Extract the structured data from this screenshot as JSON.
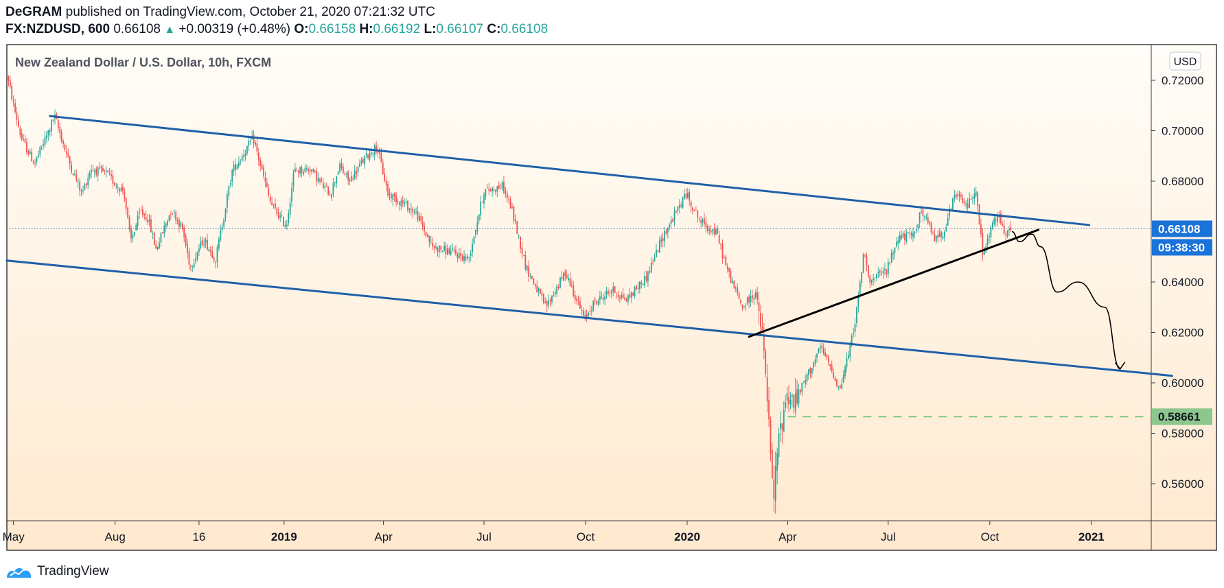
{
  "header": {
    "author": "DeGRAM",
    "published": "published on TradingView.com, October 21, 2020 07:21:32 UTC",
    "symbol": "FX:NZDUSD, 600",
    "last": "0.66108",
    "change": "+0.00319 (+0.48%)",
    "o_label": "O:",
    "o_value": "0.66158",
    "h_label": "H:",
    "h_value": "0.66192",
    "l_label": "L:",
    "l_value": "0.66107",
    "c_label": "C:",
    "c_value": "0.66108"
  },
  "footer": {
    "brand": "TradingView"
  },
  "chart_data": {
    "type": "candlestick",
    "title": "New Zealand Dollar / U.S. Dollar, 10h, FXCM",
    "currency_button": "USD",
    "price_tag": "0.66108",
    "countdown": "09:38:30",
    "support_tag": "0.58661",
    "y_ticks": [
      "0.72000",
      "0.70000",
      "0.68000",
      "0.64000",
      "0.62000",
      "0.60000",
      "0.58000",
      "0.56000"
    ],
    "y_range": [
      0.5465,
      0.7245
    ],
    "x_ticks": [
      {
        "label": "May",
        "date": "2018-05-01",
        "bold": false
      },
      {
        "label": "Aug",
        "date": "2018-08-01",
        "bold": false
      },
      {
        "label": "16",
        "date": "2018-10-16",
        "bold": false
      },
      {
        "label": "2019",
        "date": "2019-01-01",
        "bold": true
      },
      {
        "label": "Apr",
        "date": "2019-04-01",
        "bold": false
      },
      {
        "label": "Jul",
        "date": "2019-07-01",
        "bold": false
      },
      {
        "label": "Oct",
        "date": "2019-10-01",
        "bold": false
      },
      {
        "label": "2020",
        "date": "2020-01-01",
        "bold": true
      },
      {
        "label": "Apr",
        "date": "2020-04-01",
        "bold": false
      },
      {
        "label": "Jul",
        "date": "2020-07-01",
        "bold": false
      },
      {
        "label": "Oct",
        "date": "2020-10-01",
        "bold": false
      },
      {
        "label": "2021",
        "date": "2021-01-01",
        "bold": true
      }
    ],
    "price_path": [
      [
        "2018-04-25",
        0.722
      ],
      [
        "2018-05-08",
        0.697
      ],
      [
        "2018-05-20",
        0.687
      ],
      [
        "2018-06-03",
        0.701
      ],
      [
        "2018-06-07",
        0.706
      ],
      [
        "2018-06-20",
        0.688
      ],
      [
        "2018-07-02",
        0.675
      ],
      [
        "2018-07-10",
        0.685
      ],
      [
        "2018-07-24",
        0.683
      ],
      [
        "2018-08-01",
        0.679
      ],
      [
        "2018-08-09",
        0.676
      ],
      [
        "2018-08-15",
        0.656
      ],
      [
        "2018-08-24",
        0.668
      ],
      [
        "2018-08-31",
        0.665
      ],
      [
        "2018-09-07",
        0.653
      ],
      [
        "2018-09-21",
        0.669
      ],
      [
        "2018-10-01",
        0.661
      ],
      [
        "2018-10-08",
        0.646
      ],
      [
        "2018-10-20",
        0.657
      ],
      [
        "2018-10-31",
        0.649
      ],
      [
        "2018-11-15",
        0.684
      ],
      [
        "2018-12-04",
        0.697
      ],
      [
        "2018-12-20",
        0.671
      ],
      [
        "2019-01-03",
        0.662
      ],
      [
        "2019-01-10",
        0.684
      ],
      [
        "2019-01-25",
        0.685
      ],
      [
        "2019-02-05",
        0.678
      ],
      [
        "2019-02-12",
        0.675
      ],
      [
        "2019-02-20",
        0.686
      ],
      [
        "2019-03-01",
        0.68
      ],
      [
        "2019-03-15",
        0.689
      ],
      [
        "2019-03-26",
        0.694
      ],
      [
        "2019-04-05",
        0.675
      ],
      [
        "2019-04-20",
        0.671
      ],
      [
        "2019-05-01",
        0.667
      ],
      [
        "2019-05-15",
        0.654
      ],
      [
        "2019-06-01",
        0.652
      ],
      [
        "2019-06-17",
        0.649
      ],
      [
        "2019-07-01",
        0.676
      ],
      [
        "2019-07-18",
        0.678
      ],
      [
        "2019-07-26",
        0.669
      ],
      [
        "2019-08-08",
        0.646
      ],
      [
        "2019-08-26",
        0.63
      ],
      [
        "2019-09-13",
        0.644
      ],
      [
        "2019-09-30",
        0.625
      ],
      [
        "2019-10-07",
        0.631
      ],
      [
        "2019-10-25",
        0.637
      ],
      [
        "2019-11-07",
        0.633
      ],
      [
        "2019-11-25",
        0.642
      ],
      [
        "2019-12-10",
        0.658
      ],
      [
        "2019-12-31",
        0.675
      ],
      [
        "2020-01-13",
        0.664
      ],
      [
        "2020-01-28",
        0.659
      ],
      [
        "2020-02-06",
        0.645
      ],
      [
        "2020-02-20",
        0.63
      ],
      [
        "2020-03-03",
        0.636
      ],
      [
        "2020-03-09",
        0.618
      ],
      [
        "2020-03-13",
        0.598
      ],
      [
        "2020-03-19",
        0.552
      ],
      [
        "2020-03-23",
        0.575
      ],
      [
        "2020-03-31",
        0.596
      ],
      [
        "2020-04-07",
        0.592
      ],
      [
        "2020-04-20",
        0.604
      ],
      [
        "2020-05-01",
        0.614
      ],
      [
        "2020-05-12",
        0.604
      ],
      [
        "2020-05-18",
        0.597
      ],
      [
        "2020-05-28",
        0.615
      ],
      [
        "2020-06-03",
        0.63
      ],
      [
        "2020-06-09",
        0.652
      ],
      [
        "2020-06-15",
        0.64
      ],
      [
        "2020-06-30",
        0.645
      ],
      [
        "2020-07-10",
        0.658
      ],
      [
        "2020-07-23",
        0.658
      ],
      [
        "2020-07-31",
        0.668
      ],
      [
        "2020-08-13",
        0.657
      ],
      [
        "2020-08-20",
        0.66
      ],
      [
        "2020-08-31",
        0.675
      ],
      [
        "2020-09-10",
        0.67
      ],
      [
        "2020-09-18",
        0.677
      ],
      [
        "2020-09-25",
        0.65
      ],
      [
        "2020-10-02",
        0.661
      ],
      [
        "2020-10-09",
        0.667
      ],
      [
        "2020-10-14",
        0.658
      ],
      [
        "2020-10-21",
        0.661
      ]
    ],
    "annotations": [
      {
        "name": "channel-upper-line",
        "kind": "trendline",
        "from": [
          "2018-06-03",
          0.7058
        ],
        "to": [
          "2020-12-30",
          0.6626
        ],
        "color": "#1f5fa8"
      },
      {
        "name": "channel-lower-line",
        "kind": "trendline",
        "from": [
          "2018-04-25",
          0.6485
        ],
        "to": [
          "2021-03-15",
          0.6028
        ],
        "color": "#1f5fa8"
      },
      {
        "name": "rising-support-line",
        "kind": "trendline",
        "from": [
          "2020-02-26",
          0.6183
        ],
        "to": [
          "2020-11-14",
          0.6607
        ],
        "color": "#000000"
      },
      {
        "name": "support-level-line",
        "kind": "horizontal",
        "from": [
          "2020-04-01",
          0.5866
        ],
        "to": [
          "2021-03-15",
          0.5866
        ],
        "color": "#7ec87e"
      },
      {
        "name": "current-price-line",
        "kind": "horizontal",
        "from": [
          "2018-04-25",
          0.6611
        ],
        "to": [
          "2021-03-15",
          0.6611
        ],
        "color": "#3a78b8"
      },
      {
        "name": "projected-path-arrow",
        "kind": "path",
        "points": [
          [
            "2020-10-21",
            0.66
          ],
          [
            "2020-10-28",
            0.656
          ],
          [
            "2020-11-08",
            0.659
          ],
          [
            "2020-11-16",
            0.654
          ],
          [
            "2020-12-01",
            0.636
          ],
          [
            "2020-12-20",
            0.64
          ],
          [
            "2021-01-13",
            0.63
          ],
          [
            "2021-01-27",
            0.6055
          ]
        ],
        "color": "#000000"
      }
    ],
    "colors": {
      "up": "#26a69a",
      "down": "#ef5350",
      "bg_top": "#fffdf8",
      "bg_bottom": "#ffe9cf",
      "tag_blue": "#1a73d9",
      "tag_green": "#8ec78e"
    }
  }
}
